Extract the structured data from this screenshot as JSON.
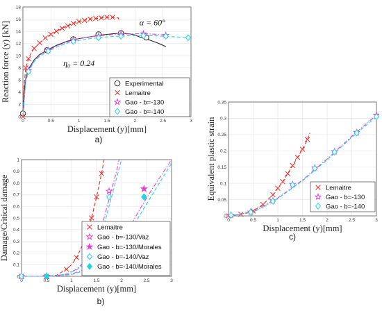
{
  "colors": {
    "lemaitre": "#e8302a",
    "gao130": "#e541d7",
    "gao140": "#22d3e0",
    "experimental": "#222222",
    "grid": "#e9e9e9"
  },
  "chart_data": [
    {
      "id": "a",
      "panel_label": "a)",
      "type": "line",
      "xlabel": "Displacement (y)[mm]",
      "ylabel": "Reaction force (y) [kN]",
      "xlim": [
        0,
        3
      ],
      "ylim": [
        0,
        18
      ],
      "xticks": [
        "0",
        "0.5",
        "1",
        "1.5",
        "2",
        "2.5",
        "3"
      ],
      "yticks": [
        "0",
        "2",
        "4",
        "6",
        "8",
        "10",
        "12",
        "14",
        "16",
        "18"
      ],
      "grid": true,
      "legend_position": "bottom-right",
      "annotations": [
        {
          "text": "α = 60°",
          "x": 2.08,
          "y": 15.0
        },
        {
          "text": "η₀ = 0.24",
          "x": 0.72,
          "y": 8.3
        }
      ],
      "series": [
        {
          "name": "Experimental",
          "style": "solid",
          "color": "experimental",
          "marker": "circle",
          "x": [
            0,
            0.02,
            0.05,
            0.1,
            0.2,
            0.3,
            0.45,
            0.6,
            0.8,
            1.0,
            1.2,
            1.4,
            1.6,
            1.75,
            1.9,
            2.0,
            2.1,
            2.25,
            2.4,
            2.55
          ],
          "y": [
            0,
            4.0,
            6.2,
            7.8,
            9.3,
            10.2,
            11.0,
            11.7,
            12.4,
            12.8,
            13.1,
            13.4,
            13.6,
            13.7,
            13.6,
            13.4,
            13.0,
            12.6,
            12.1,
            11.5
          ],
          "marker_x": [
            0,
            0.43,
            0.9,
            1.35,
            1.75,
            2.2
          ],
          "marker_y": [
            0.5,
            10.9,
            12.7,
            13.5,
            13.7,
            13.0
          ]
        },
        {
          "name": "Lemaitre",
          "style": "dashed",
          "color": "lemaitre",
          "marker": "x",
          "x": [
            0,
            0.02,
            0.05,
            0.1,
            0.15,
            0.2,
            0.3,
            0.4,
            0.5,
            0.6,
            0.7,
            0.8,
            0.9,
            1.0,
            1.1,
            1.2,
            1.3,
            1.4,
            1.5,
            1.6,
            1.7,
            1.72
          ],
          "y": [
            0,
            5.0,
            8.0,
            9.5,
            10.5,
            11.2,
            12.1,
            12.9,
            13.5,
            14.0,
            14.5,
            14.9,
            15.3,
            15.6,
            15.8,
            16.0,
            16.1,
            16.2,
            16.3,
            16.3,
            16.2,
            15.8
          ],
          "marker_x": [
            0,
            0.05,
            0.1,
            0.2,
            0.3,
            0.4,
            0.5,
            0.6,
            0.7,
            0.8,
            0.9,
            1.0,
            1.1,
            1.2,
            1.3,
            1.4,
            1.5,
            1.6
          ],
          "marker_y": [
            0,
            8.0,
            9.5,
            11.2,
            12.1,
            12.9,
            13.5,
            14.0,
            14.5,
            14.9,
            15.3,
            15.6,
            15.8,
            16.0,
            16.1,
            16.2,
            16.3,
            16.3
          ]
        },
        {
          "name": "Gao - b=-130",
          "style": "dashdot",
          "color": "gao130",
          "marker": "star",
          "x": [
            0,
            0.05,
            0.1,
            0.2,
            0.3,
            0.45,
            0.6,
            0.8,
            1.0,
            1.2,
            1.4,
            1.6,
            1.8,
            2.0,
            2.2,
            2.4,
            2.55,
            2.6
          ],
          "y": [
            0,
            6.0,
            7.6,
            9.2,
            10.1,
            10.9,
            11.6,
            12.3,
            12.8,
            13.1,
            13.3,
            13.45,
            13.55,
            13.6,
            13.6,
            13.5,
            13.35,
            13.0
          ],
          "marker_x": [
            0.1,
            0.45,
            0.9,
            1.35,
            1.75,
            2.15,
            2.55
          ],
          "marker_y": [
            7.6,
            10.9,
            12.55,
            13.2,
            13.5,
            13.6,
            13.35
          ]
        },
        {
          "name": "Gao - b=-140",
          "style": "dashed",
          "color": "gao140",
          "marker": "diamond",
          "x": [
            0,
            0.05,
            0.1,
            0.2,
            0.3,
            0.45,
            0.6,
            0.8,
            1.0,
            1.2,
            1.4,
            1.6,
            1.8,
            2.0,
            2.2,
            2.4,
            2.6,
            2.8,
            3.0
          ],
          "y": [
            0,
            5.8,
            7.4,
            9.0,
            9.9,
            10.7,
            11.4,
            12.1,
            12.5,
            12.8,
            13.0,
            13.15,
            13.25,
            13.3,
            13.3,
            13.25,
            13.15,
            13.05,
            12.9
          ],
          "marker_x": [
            0.1,
            0.45,
            0.9,
            1.35,
            1.75,
            2.15,
            2.55,
            2.95
          ],
          "marker_y": [
            7.4,
            10.75,
            12.35,
            12.95,
            13.2,
            13.3,
            13.2,
            12.95
          ]
        }
      ],
      "legend": [
        "Experimental",
        "Lemaitre",
        "Gao - b=-130",
        "Gao - b=-140"
      ]
    },
    {
      "id": "b",
      "panel_label": "b)",
      "type": "line",
      "xlabel": "Displacement (y)[mm]",
      "ylabel": "Damage/Critical damage",
      "xlim": [
        0,
        3
      ],
      "ylim": [
        0,
        1
      ],
      "xticks": [
        "0",
        "0.5",
        "1",
        "1.5",
        "2",
        "2.5",
        "3"
      ],
      "yticks": [
        "0",
        "0.1",
        "0.2",
        "0.3",
        "0.4",
        "0.5",
        "0.6",
        "0.7",
        "0.8",
        "0.9",
        "1"
      ],
      "grid": true,
      "legend_position": "bottom-right",
      "series": [
        {
          "name": "Lemaitre",
          "style": "dashed",
          "color": "lemaitre",
          "marker": "x",
          "x": [
            0,
            0.5,
            0.7,
            0.9,
            1.0,
            1.1,
            1.2,
            1.3,
            1.4,
            1.5,
            1.6,
            1.65
          ],
          "y": [
            0,
            0,
            0.01,
            0.06,
            0.1,
            0.16,
            0.25,
            0.36,
            0.5,
            0.68,
            0.88,
            1.0
          ],
          "marker_x": [
            0,
            0.5,
            0.9,
            1.1,
            1.3,
            1.4,
            1.5,
            1.6
          ],
          "marker_y": [
            0,
            0,
            0.06,
            0.16,
            0.36,
            0.5,
            0.68,
            0.88
          ]
        },
        {
          "name": "Gao - b=-130/Vaz",
          "style": "dashdot",
          "color": "gao130",
          "marker": "star",
          "x": [
            0,
            0.5,
            0.7,
            0.9,
            1.1,
            1.3,
            1.5,
            1.6,
            1.7,
            1.8,
            1.9,
            1.95
          ],
          "y": [
            0,
            0,
            0.005,
            0.02,
            0.06,
            0.14,
            0.3,
            0.42,
            0.58,
            0.74,
            0.9,
            1.0
          ],
          "marker_x": [
            0,
            0.5,
            1.3,
            1.75
          ],
          "marker_y": [
            0,
            0,
            0.14,
            0.73
          ]
        },
        {
          "name": "Gao - b=-130/Morales",
          "style": "dashdot",
          "color": "gao130",
          "marker": "star-filled",
          "x": [
            0,
            0.5,
            0.8,
            1.0,
            1.2,
            1.5,
            1.8,
            2.0,
            2.2,
            2.4,
            2.6,
            2.8,
            3.0
          ],
          "y": [
            0,
            0,
            0.005,
            0.02,
            0.05,
            0.12,
            0.23,
            0.33,
            0.45,
            0.6,
            0.74,
            0.87,
            1.0
          ],
          "marker_x": [
            0.5,
            2.45
          ],
          "marker_y": [
            0,
            0.75
          ]
        },
        {
          "name": "Gao - b=-140/Vaz",
          "style": "dashed",
          "color": "gao140",
          "marker": "diamond",
          "x": [
            0,
            0.5,
            0.7,
            0.9,
            1.1,
            1.3,
            1.5,
            1.6,
            1.7,
            1.8,
            1.9,
            2.0
          ],
          "y": [
            0,
            0,
            0.005,
            0.02,
            0.055,
            0.12,
            0.26,
            0.37,
            0.52,
            0.68,
            0.84,
            1.0
          ],
          "marker_x": [
            0,
            0.5,
            1.3,
            1.75
          ],
          "marker_y": [
            0,
            0,
            0.12,
            0.68
          ]
        },
        {
          "name": "Gao - b=-140/Morales",
          "style": "dashed",
          "color": "gao140",
          "marker": "diamond-filled",
          "x": [
            0,
            0.5,
            0.8,
            1.0,
            1.2,
            1.5,
            1.8,
            2.0,
            2.2,
            2.4,
            2.6,
            2.8,
            3.0
          ],
          "y": [
            0,
            0,
            0.004,
            0.015,
            0.04,
            0.1,
            0.2,
            0.29,
            0.41,
            0.55,
            0.69,
            0.83,
            0.97
          ],
          "marker_x": [
            0.5,
            2.45
          ],
          "marker_y": [
            0,
            0.68
          ]
        }
      ],
      "legend": [
        "Lemaitre",
        "Gao - b=-130/Vaz",
        "Gao - b=-130/Morales",
        "Gao - b=-140/Vaz",
        "Gao - b=-140/Morales"
      ]
    },
    {
      "id": "c",
      "panel_label": "c)",
      "type": "line",
      "xlabel": "Displacement (y)[mm]",
      "ylabel": "Equivalent plastic strain",
      "xlim": [
        0,
        3
      ],
      "ylim": [
        0,
        0.35
      ],
      "xticks": [
        "0",
        "0.5",
        "1",
        "1.5",
        "2",
        "2.5",
        "3"
      ],
      "yticks": [
        "0",
        "0.05",
        "0.1",
        "0.15",
        "0.2",
        "0.25",
        "0.3",
        "0.35"
      ],
      "grid": true,
      "legend_position": "bottom-right",
      "series": [
        {
          "name": "Lemaitre",
          "style": "dashed",
          "color": "lemaitre",
          "marker": "x",
          "x": [
            0,
            0.25,
            0.5,
            0.7,
            0.9,
            1.0,
            1.1,
            1.2,
            1.3,
            1.4,
            1.5,
            1.6,
            1.65
          ],
          "y": [
            0,
            0.005,
            0.015,
            0.035,
            0.065,
            0.085,
            0.105,
            0.13,
            0.155,
            0.18,
            0.205,
            0.235,
            0.255
          ],
          "marker_x": [
            0,
            0.25,
            0.5,
            0.7,
            0.9,
            1.0,
            1.1,
            1.2,
            1.3,
            1.4,
            1.5,
            1.6
          ],
          "marker_y": [
            0,
            0.005,
            0.015,
            0.035,
            0.065,
            0.085,
            0.105,
            0.13,
            0.155,
            0.18,
            0.205,
            0.235
          ]
        },
        {
          "name": "Gao - b=-130",
          "style": "dashdot",
          "color": "gao130",
          "marker": "star",
          "x": [
            0,
            0.5,
            1.0,
            1.5,
            2.0,
            2.5,
            3.0
          ],
          "y": [
            0,
            0.012,
            0.055,
            0.11,
            0.175,
            0.245,
            0.31
          ],
          "marker_x": [
            0.05,
            0.45,
            0.9,
            1.3,
            1.75,
            2.15,
            2.6,
            3.0
          ],
          "marker_y": [
            0.002,
            0.012,
            0.047,
            0.097,
            0.148,
            0.198,
            0.257,
            0.31
          ]
        },
        {
          "name": "Gao - b=-140",
          "style": "dashed",
          "color": "gao140",
          "marker": "diamond",
          "x": [
            0,
            0.5,
            1.0,
            1.5,
            2.0,
            2.5,
            3.0
          ],
          "y": [
            0,
            0.011,
            0.053,
            0.108,
            0.172,
            0.242,
            0.305
          ],
          "marker_x": [
            0.05,
            0.45,
            0.9,
            1.3,
            1.75,
            2.15,
            2.6,
            3.0
          ],
          "marker_y": [
            0.002,
            0.011,
            0.045,
            0.095,
            0.146,
            0.196,
            0.255,
            0.305
          ]
        }
      ],
      "legend": [
        "Lemaitre",
        "Gao - b=-130",
        "Gao - b=-140"
      ]
    }
  ]
}
